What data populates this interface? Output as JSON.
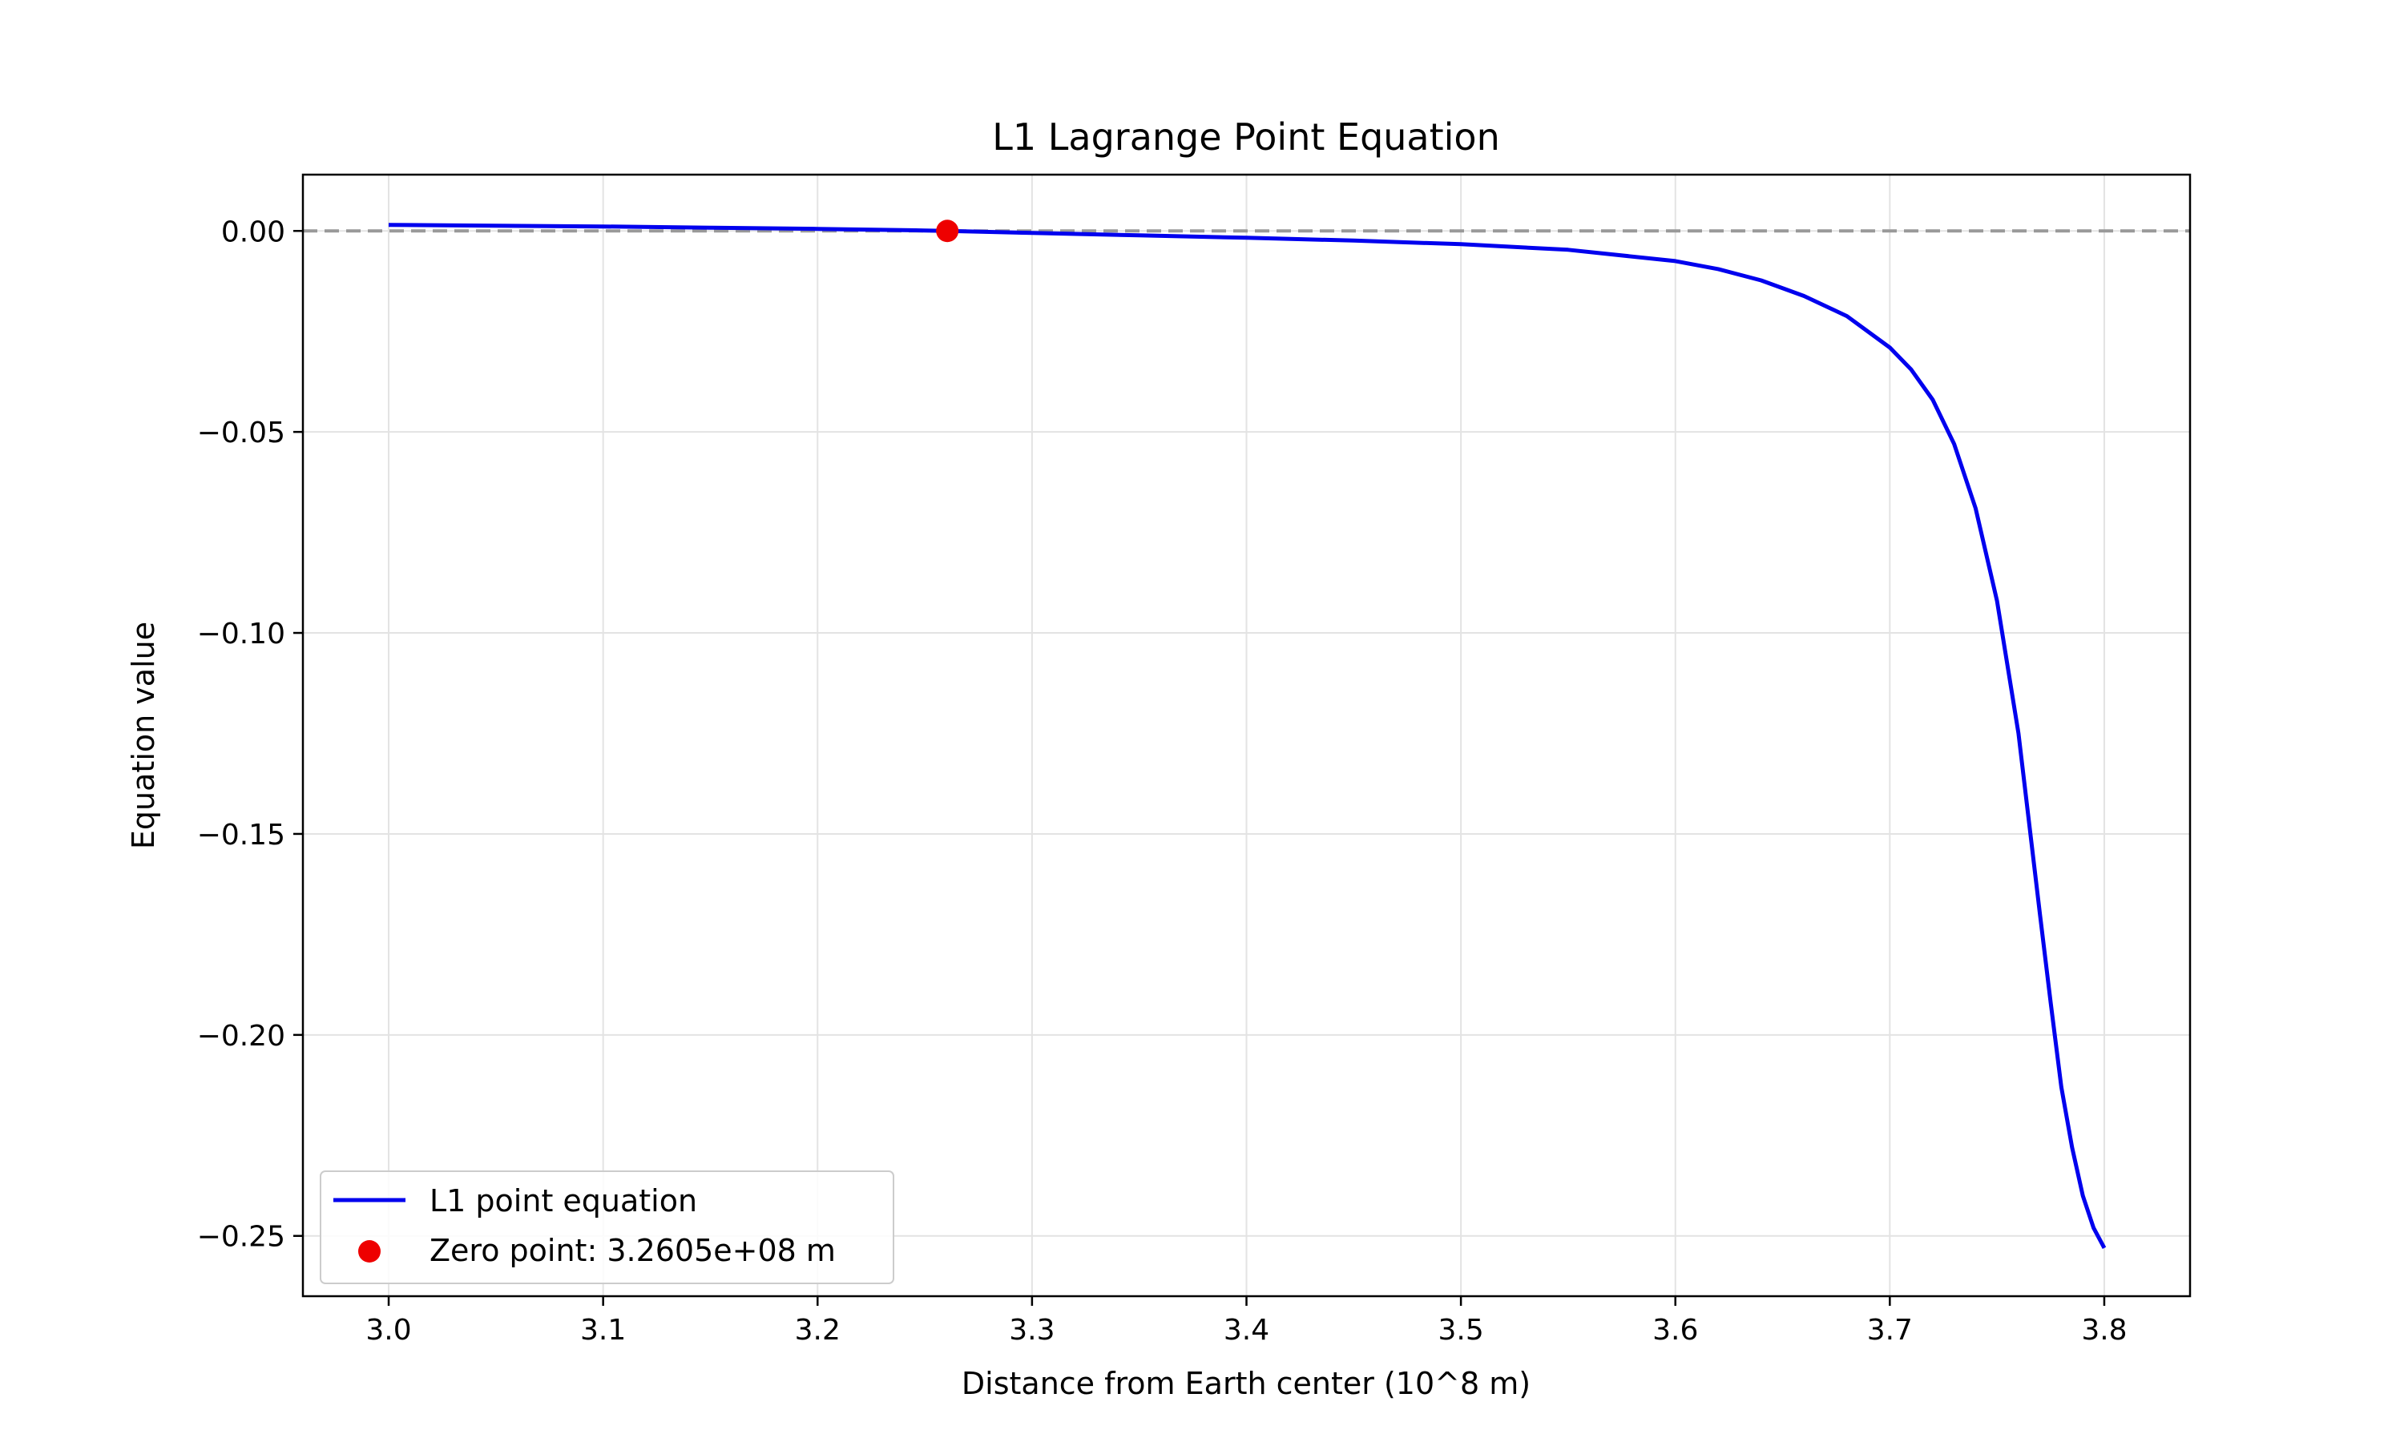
{
  "chart_data": {
    "type": "line",
    "title": "L1 Lagrange Point Equation",
    "xlabel": "Distance from Earth center (10^8 m)",
    "ylabel": "Equation value",
    "xlim": [
      2.96,
      3.84
    ],
    "ylim": [
      -0.265,
      0.014
    ],
    "xticks": [
      3.0,
      3.1,
      3.2,
      3.3,
      3.4,
      3.5,
      3.6,
      3.7,
      3.8
    ],
    "xtick_labels": [
      "3.0",
      "3.1",
      "3.2",
      "3.3",
      "3.4",
      "3.5",
      "3.6",
      "3.7",
      "3.8"
    ],
    "yticks": [
      0.0,
      -0.05,
      -0.1,
      -0.15,
      -0.2,
      -0.25
    ],
    "ytick_labels": [
      "0.00",
      "−0.05",
      "−0.10",
      "−0.15",
      "−0.20",
      "−0.25"
    ],
    "grid": true,
    "legend_position": "lower-left",
    "reference_line": {
      "y": 0.0,
      "style": "dashed",
      "color": "#999999"
    },
    "series": [
      {
        "name": "L1 point equation",
        "color": "#0000ee",
        "x": [
          3.0,
          3.05,
          3.1,
          3.15,
          3.2,
          3.25,
          3.2605,
          3.3,
          3.35,
          3.4,
          3.45,
          3.5,
          3.55,
          3.6,
          3.62,
          3.64,
          3.66,
          3.68,
          3.7,
          3.71,
          3.72,
          3.73,
          3.74,
          3.75,
          3.76,
          3.77,
          3.775,
          3.78,
          3.785,
          3.79,
          3.795,
          3.8
        ],
        "y": [
          0.0015,
          0.0013,
          0.0011,
          0.0008,
          0.0005,
          0.0001,
          0.0,
          -0.0005,
          -0.0011,
          -0.0017,
          -0.0024,
          -0.0033,
          -0.0047,
          -0.0075,
          -0.0095,
          -0.0123,
          -0.0162,
          -0.0212,
          -0.029,
          -0.0345,
          -0.042,
          -0.053,
          -0.069,
          -0.092,
          -0.125,
          -0.17,
          -0.192,
          -0.213,
          -0.228,
          -0.24,
          -0.248,
          -0.253
        ]
      }
    ],
    "markers": [
      {
        "name": "Zero point: 3.2605e+08 m",
        "x": 3.2605,
        "y": 0.0,
        "color": "#ee0000"
      }
    ]
  }
}
